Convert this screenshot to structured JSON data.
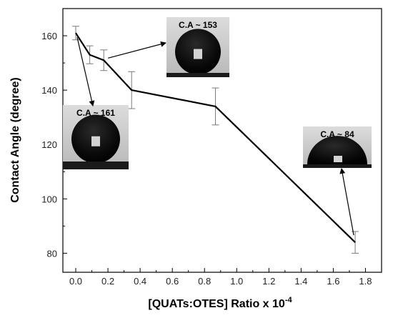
{
  "chart_data": {
    "type": "line",
    "title": "",
    "xlabel": "[QUATs:OTES] Ratio x 10",
    "xlabel_superscript": "-4",
    "ylabel": "Contact Angle (degree)",
    "xlim": [
      -0.08,
      1.9
    ],
    "ylim": [
      73,
      170
    ],
    "x_ticks": [
      0.0,
      0.2,
      0.4,
      0.6,
      0.8,
      1.0,
      1.2,
      1.4,
      1.6,
      1.8
    ],
    "x_tick_labels": [
      "0.0",
      "0.2",
      "0.4",
      "0.6",
      "0.8",
      "1.0",
      "1.2",
      "1.4",
      "1.6",
      "1.8"
    ],
    "y_ticks": [
      80,
      100,
      120,
      140,
      160
    ],
    "y_tick_labels": [
      "80",
      "100",
      "120",
      "140",
      "160"
    ],
    "grid": false,
    "legend": "none",
    "series": [
      {
        "color": "#000000",
        "x": [
          0.0,
          0.087,
          0.174,
          0.347,
          0.868,
          1.736
        ],
        "y": [
          161,
          153,
          151,
          140,
          134,
          84
        ],
        "error": [
          2.5,
          3.3,
          3.8,
          6.8,
          6.8,
          4.0
        ]
      }
    ],
    "annotations": [
      {
        "text": "C.A ~ 161",
        "x": 0.0,
        "y": 161
      },
      {
        "text": "C.A ~ 153",
        "x": 0.174,
        "y": 151
      },
      {
        "text": "C.A ~ 84",
        "x": 1.736,
        "y": 84
      }
    ]
  }
}
